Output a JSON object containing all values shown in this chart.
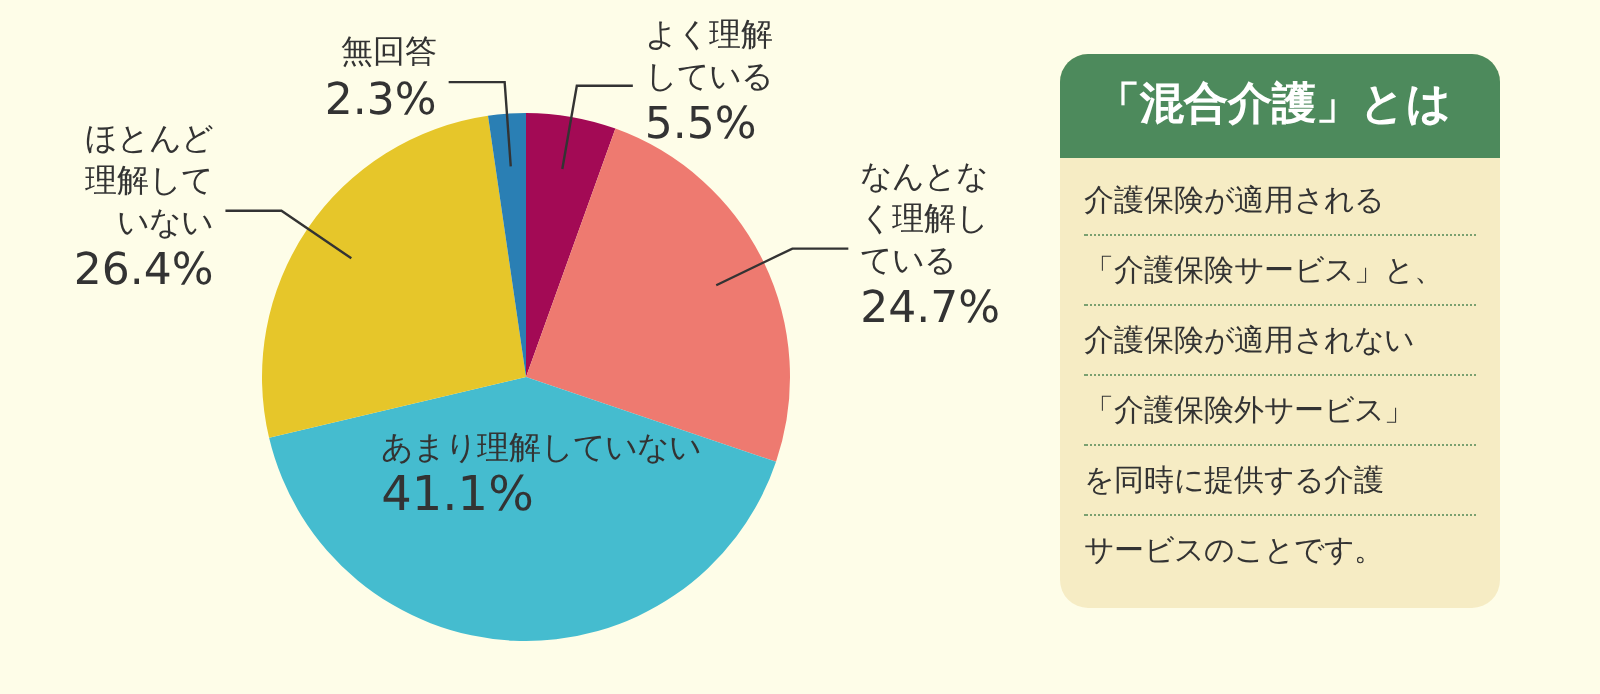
{
  "chart_data": [
    {
      "type": "pie",
      "categories": [
        "よく理解している",
        "なんとなく理解している",
        "あまり理解していない",
        "ほとんど理解していない",
        "無回答"
      ],
      "values": [
        5.5,
        24.7,
        41.1,
        26.4,
        2.3
      ],
      "colors": [
        "#a30a55",
        "#ee7a70",
        "#45bccf",
        "#e6c62a",
        "#2a7fb4"
      ],
      "value_labels": [
        "5.5%",
        "24.7%",
        "41.1%",
        "26.4%",
        "2.3%"
      ],
      "legend": false
    },
    {
      "type": "other",
      "title": "「混合介護」とは",
      "annotations": [
        "介護保険が適用される",
        "「介護保険サービス」と、",
        "介護保険が適用されない",
        "「介護保険外サービス」",
        "を同時に提供する介護",
        "サービスのことです。"
      ]
    }
  ]
}
